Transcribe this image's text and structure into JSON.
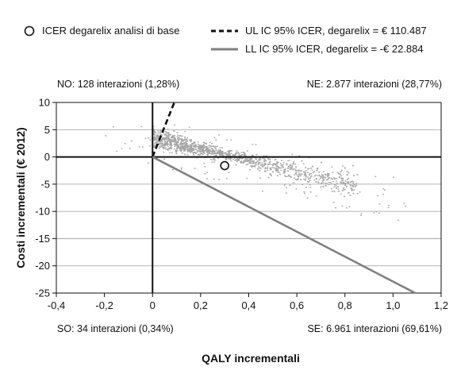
{
  "legend": {
    "icer_label": "ICER degarelix analisi di base",
    "ul_label": "UL IC 95% ICER, degarelix = € 110.487",
    "ll_label": "LL IC 95% ICER, degarelix = -€ 22.884"
  },
  "quadrants": {
    "no": "NO: 128 interazioni (1,28%)",
    "ne": "NE: 2.877 interazioni (28,77%)",
    "so": "SO: 34 interazioni (0,34%)",
    "se": "SE: 6.961 interazioni (69,61%)"
  },
  "chart_data": {
    "type": "scatter",
    "title": "",
    "xlabel": "QALY incrementali",
    "ylabel": "Costi incrementali (€ 2012)",
    "xlim": [
      -0.4,
      1.2
    ],
    "ylim": [
      -25,
      10
    ],
    "x_ticks": [
      -0.4,
      -0.2,
      0,
      0.2,
      0.4,
      0.6,
      0.8,
      1.0,
      1.2
    ],
    "x_tick_labels": [
      "-0,4",
      "-0,2",
      "0",
      "0,2",
      "0,4",
      "0,6",
      "0,8",
      "1,0",
      "1,2"
    ],
    "y_ticks": [
      10,
      5,
      0,
      -5,
      -10,
      -15,
      -20,
      -25
    ],
    "y_tick_labels": [
      "10",
      "5",
      "0",
      "-5",
      "-10",
      "-15",
      "-20",
      "-25"
    ],
    "grid": "horizontal",
    "legend_position": "top",
    "base_case_icer": {
      "x": 0.3,
      "y": -1.6
    },
    "upper_ci_line": {
      "name": "UL IC 95% ICER, degarelix = € 110.487",
      "slope_k": 110.487,
      "style": "dashed",
      "color": "#111111"
    },
    "lower_ci_line": {
      "name": "LL IC 95% ICER, degarelix = -€ 22.884",
      "slope_k": -22.884,
      "style": "solid",
      "color": "#808080"
    },
    "point_cloud": {
      "n_simulations": 10000,
      "color": "#a6a6a6",
      "quadrant_counts": {
        "NO": 128,
        "NE": 2877,
        "SO": 34,
        "SE": 6961
      }
    }
  }
}
